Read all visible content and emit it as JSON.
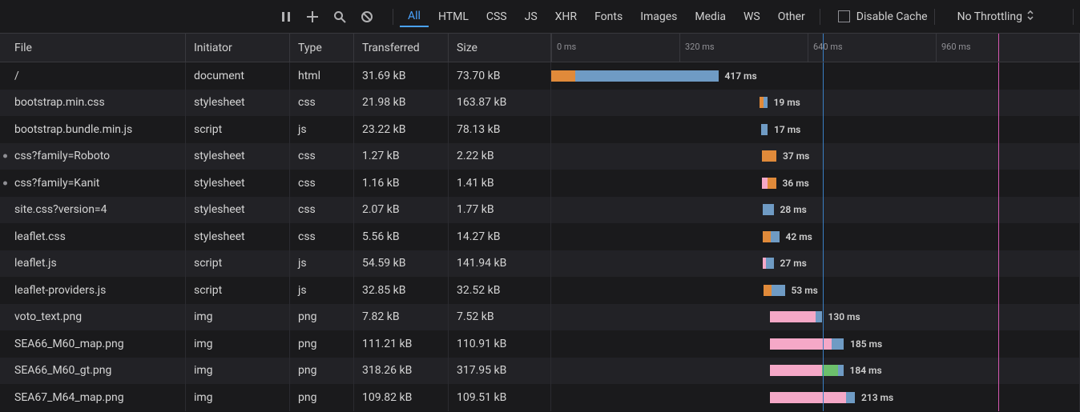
{
  "toolbar": {
    "filters": [
      "All",
      "HTML",
      "CSS",
      "JS",
      "XHR",
      "Fonts",
      "Images",
      "Media",
      "WS",
      "Other"
    ],
    "activeFilterIndex": 0,
    "disableCache": {
      "label": "Disable Cache",
      "checked": false
    },
    "throttling": {
      "label": "No Throttling"
    }
  },
  "columns": {
    "file": "File",
    "initiator": "Initiator",
    "type": "Type",
    "transferred": "Transferred",
    "size": "Size"
  },
  "timeline": {
    "totalMs": 1320,
    "ticks": [
      "0 ms",
      "320 ms",
      "640 ms",
      "960 ms"
    ],
    "tickStepMs": 320,
    "markers": [
      {
        "ms": 677,
        "color": "marker-blue"
      },
      {
        "ms": 1115,
        "color": "marker-pink"
      }
    ],
    "colors": {
      "orange": "#e08a3a",
      "blue": "#6f9bc4",
      "pink": "#f5a8c7",
      "green": "#6cbf6c"
    }
  },
  "requests": [
    {
      "file": "/",
      "initiator": "document",
      "type": "html",
      "transferred": "31.69 kB",
      "size": "73.70 kB",
      "timeLabel": "417 ms",
      "startMs": 0,
      "segments": [
        {
          "c": "c-orange",
          "ms": 60
        },
        {
          "c": "c-blue",
          "ms": 357
        }
      ],
      "dot": false
    },
    {
      "file": "bootstrap.min.css",
      "initiator": "stylesheet",
      "type": "css",
      "transferred": "21.98 kB",
      "size": "163.87 kB",
      "timeLabel": "19 ms",
      "startMs": 520,
      "segments": [
        {
          "c": "c-orange",
          "ms": 9
        },
        {
          "c": "c-blue",
          "ms": 10
        }
      ],
      "dot": false
    },
    {
      "file": "bootstrap.bundle.min.js",
      "initiator": "script",
      "type": "js",
      "transferred": "23.22 kB",
      "size": "78.13 kB",
      "timeLabel": "17 ms",
      "startMs": 523,
      "segments": [
        {
          "c": "c-blue",
          "ms": 17
        }
      ],
      "dot": false
    },
    {
      "file": "css?family=Roboto",
      "initiator": "stylesheet",
      "type": "css",
      "transferred": "1.27 kB",
      "size": "2.22 kB",
      "timeLabel": "37 ms",
      "startMs": 525,
      "segments": [
        {
          "c": "c-orange",
          "ms": 37
        }
      ],
      "dot": true
    },
    {
      "file": "css?family=Kanit",
      "initiator": "stylesheet",
      "type": "css",
      "transferred": "1.16 kB",
      "size": "1.41 kB",
      "timeLabel": "36 ms",
      "startMs": 525,
      "segments": [
        {
          "c": "c-pink",
          "ms": 14
        },
        {
          "c": "c-orange",
          "ms": 22
        }
      ],
      "dot": true
    },
    {
      "file": "site.css?version=4",
      "initiator": "stylesheet",
      "type": "css",
      "transferred": "2.07 kB",
      "size": "1.77 kB",
      "timeLabel": "28 ms",
      "startMs": 527,
      "segments": [
        {
          "c": "c-blue",
          "ms": 28
        }
      ],
      "dot": false
    },
    {
      "file": "leaflet.css",
      "initiator": "stylesheet",
      "type": "css",
      "transferred": "5.56 kB",
      "size": "14.27 kB",
      "timeLabel": "42 ms",
      "startMs": 527,
      "segments": [
        {
          "c": "c-orange",
          "ms": 20
        },
        {
          "c": "c-blue",
          "ms": 22
        }
      ],
      "dot": false
    },
    {
      "file": "leaflet.js",
      "initiator": "script",
      "type": "js",
      "transferred": "54.59 kB",
      "size": "141.94 kB",
      "timeLabel": "27 ms",
      "startMs": 528,
      "segments": [
        {
          "c": "c-pink",
          "ms": 8
        },
        {
          "c": "c-blue",
          "ms": 19
        }
      ],
      "dot": false
    },
    {
      "file": "leaflet-providers.js",
      "initiator": "script",
      "type": "js",
      "transferred": "32.85 kB",
      "size": "32.52 kB",
      "timeLabel": "53 ms",
      "startMs": 530,
      "segments": [
        {
          "c": "c-orange",
          "ms": 20
        },
        {
          "c": "c-blue",
          "ms": 33
        }
      ],
      "dot": false
    },
    {
      "file": "voto_text.png",
      "initiator": "img",
      "type": "png",
      "transferred": "7.82 kB",
      "size": "7.52 kB",
      "timeLabel": "130 ms",
      "startMs": 545,
      "segments": [
        {
          "c": "c-pink",
          "ms": 115
        },
        {
          "c": "c-blue",
          "ms": 15
        }
      ],
      "dot": false
    },
    {
      "file": "SEA66_M60_map.png",
      "initiator": "img",
      "type": "png",
      "transferred": "111.21 kB",
      "size": "110.91 kB",
      "timeLabel": "185 ms",
      "startMs": 545,
      "segments": [
        {
          "c": "c-pink",
          "ms": 155
        },
        {
          "c": "c-blue",
          "ms": 30
        }
      ],
      "dot": false
    },
    {
      "file": "SEA66_M60_gt.png",
      "initiator": "img",
      "type": "png",
      "transferred": "318.26 kB",
      "size": "317.95 kB",
      "timeLabel": "184 ms",
      "startMs": 545,
      "segments": [
        {
          "c": "c-pink",
          "ms": 130
        },
        {
          "c": "c-green",
          "ms": 40
        },
        {
          "c": "c-blue",
          "ms": 14
        }
      ],
      "dot": false
    },
    {
      "file": "SEA67_M64_map.png",
      "initiator": "img",
      "type": "png",
      "transferred": "109.82 kB",
      "size": "109.51 kB",
      "timeLabel": "213 ms",
      "startMs": 545,
      "segments": [
        {
          "c": "c-pink",
          "ms": 190
        },
        {
          "c": "c-blue",
          "ms": 23
        }
      ],
      "dot": false
    }
  ]
}
